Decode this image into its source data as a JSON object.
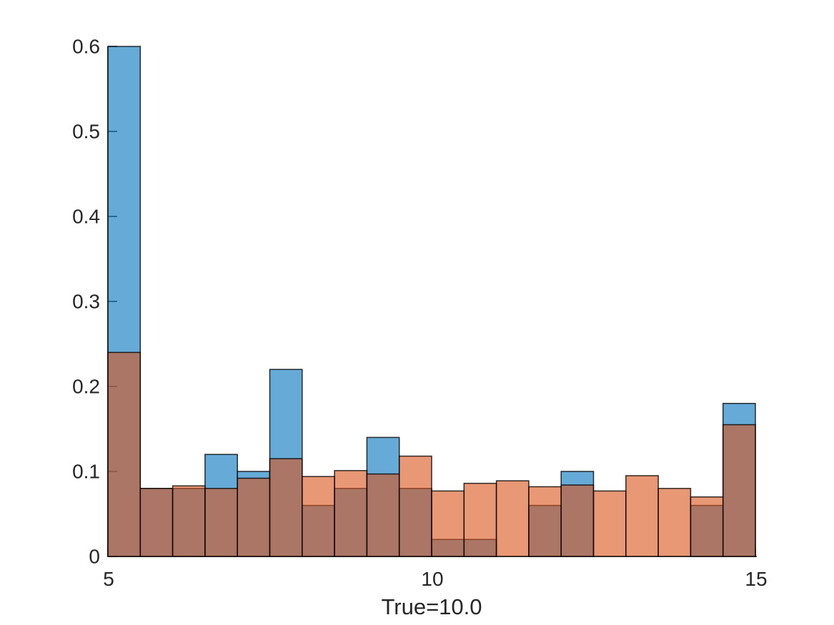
{
  "figure": {
    "background": "#ffffff"
  },
  "chart_data": {
    "type": "histogram",
    "title": "",
    "xlabel": "True=10.0",
    "ylabel": "",
    "xlim": [
      5,
      15
    ],
    "ylim": [
      0,
      0.6
    ],
    "bin_start": 5,
    "bin_width": 0.5,
    "num_bins": 20,
    "grid": false,
    "legend": "none",
    "normalization": "pdf",
    "x_ticks": [
      {
        "value": 5,
        "label": "5"
      },
      {
        "value": 10,
        "label": "10"
      },
      {
        "value": 15,
        "label": "15"
      }
    ],
    "y_ticks": [
      {
        "value": 0.0,
        "label": "0"
      },
      {
        "value": 0.1,
        "label": "0.1"
      },
      {
        "value": 0.2,
        "label": "0.2"
      },
      {
        "value": 0.3,
        "label": "0.3"
      },
      {
        "value": 0.4,
        "label": "0.4"
      },
      {
        "value": 0.5,
        "label": "0.5"
      },
      {
        "value": 0.6,
        "label": "0.6"
      }
    ],
    "axis_color": "#262626",
    "edge_color": "#000000",
    "overlap_color": "#AB7665",
    "series": [
      {
        "name": "blue-histogram",
        "fill": "#0072BD",
        "alpha": 0.6,
        "values": [
          0.6,
          0.08,
          0.08,
          0.12,
          0.1,
          0.22,
          0.06,
          0.08,
          0.14,
          0.08,
          0.02,
          0.02,
          0.0,
          0.06,
          0.1,
          0.0,
          0.0,
          0.0,
          0.06,
          0.18
        ]
      },
      {
        "name": "orange-histogram",
        "fill": "#D95319",
        "alpha": 0.6,
        "values": [
          0.24,
          0.08,
          0.083,
          0.08,
          0.092,
          0.115,
          0.094,
          0.101,
          0.097,
          0.118,
          0.077,
          0.086,
          0.089,
          0.082,
          0.084,
          0.077,
          0.095,
          0.08,
          0.07,
          0.155
        ]
      }
    ]
  }
}
